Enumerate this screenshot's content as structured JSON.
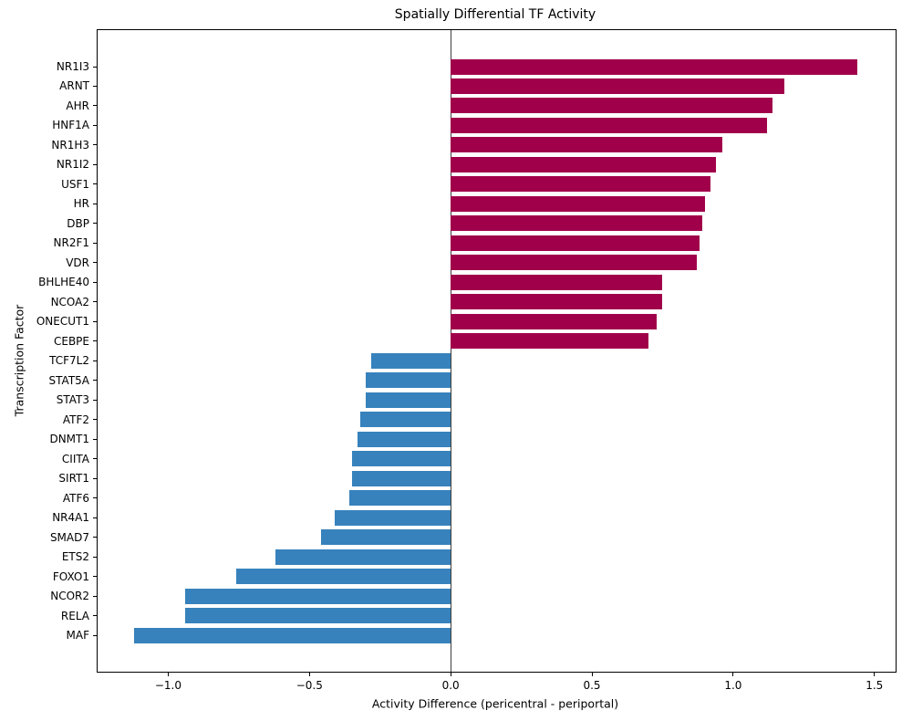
{
  "chart_data": {
    "type": "bar",
    "orientation": "horizontal",
    "title": "Spatially Differential TF Activity",
    "xlabel": "Activity Difference (pericentral - periportal)",
    "ylabel": "Transcription Factor",
    "categories": [
      "NR1I3",
      "ARNT",
      "AHR",
      "HNF1A",
      "NR1H3",
      "NR1I2",
      "USF1",
      "HR",
      "DBP",
      "NR2F1",
      "VDR",
      "BHLHE40",
      "NCOA2",
      "ONECUT1",
      "CEBPE",
      "TCF7L2",
      "STAT5A",
      "STAT3",
      "ATF2",
      "DNMT1",
      "CIITA",
      "SIRT1",
      "ATF6",
      "NR4A1",
      "SMAD7",
      "ETS2",
      "FOXO1",
      "NCOR2",
      "RELA",
      "MAF"
    ],
    "values": [
      1.44,
      1.18,
      1.14,
      1.12,
      0.96,
      0.94,
      0.92,
      0.9,
      0.89,
      0.88,
      0.87,
      0.75,
      0.75,
      0.73,
      0.7,
      -0.28,
      -0.3,
      -0.3,
      -0.32,
      -0.33,
      -0.35,
      -0.35,
      -0.36,
      -0.41,
      -0.46,
      -0.62,
      -0.76,
      -0.94,
      -0.94,
      -1.12
    ],
    "positive_color": "#a0004a",
    "negative_color": "#3782bc",
    "xlim": [
      -1.25,
      1.575
    ],
    "xticks": [
      -1.0,
      -0.5,
      0.0,
      0.5,
      1.0,
      1.5
    ],
    "xtick_labels": [
      "−1.0",
      "−0.5",
      "0.0",
      "0.5",
      "1.0",
      "1.5"
    ],
    "grid": false,
    "legend": null,
    "zero_line": true,
    "frame_color": "#000000"
  }
}
